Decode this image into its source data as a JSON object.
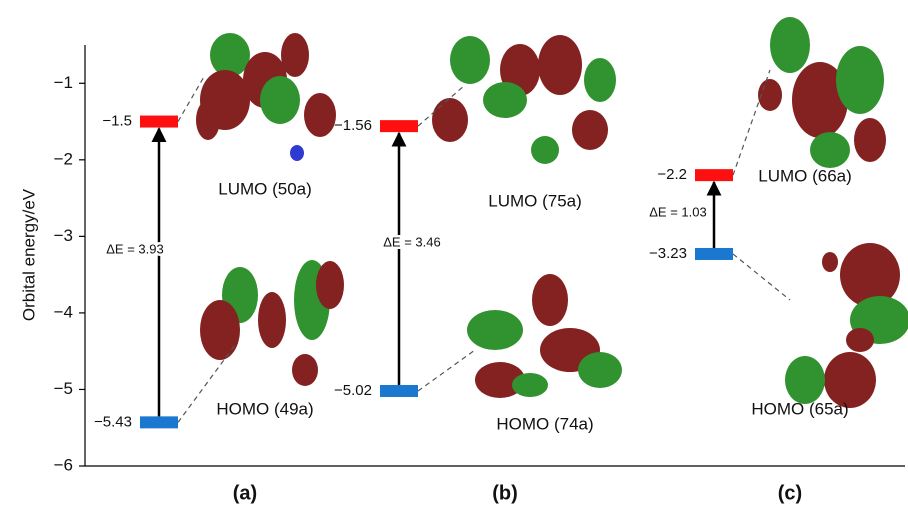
{
  "chart_data": {
    "type": "energy-level",
    "ylabel": "Orbital energy/eV",
    "ylim": [
      -6,
      -0.5
    ],
    "yticks": [
      {
        "value": -1,
        "label": "−1"
      },
      {
        "value": -2,
        "label": "−2"
      },
      {
        "value": -3,
        "label": "−3"
      },
      {
        "value": -4,
        "label": "−4"
      },
      {
        "value": -5,
        "label": "−5"
      },
      {
        "value": -6,
        "label": "−6"
      }
    ],
    "lumo_color": "#ff1010",
    "homo_color": "#1a78d0",
    "panels": [
      {
        "label": "(a)",
        "lumo": {
          "name": "LUMO (50a)",
          "value": -1.5,
          "value_label": "−1.5"
        },
        "homo": {
          "name": "HOMO (49a)",
          "value": -5.43,
          "value_label": "−5.43"
        },
        "gap": {
          "value": 3.93,
          "label": "ΔE = 3.93"
        }
      },
      {
        "label": "(b)",
        "lumo": {
          "name": "LUMO (75a)",
          "value": -1.56,
          "value_label": "−1.56"
        },
        "homo": {
          "name": "HOMO (74a)",
          "value": -5.02,
          "value_label": "−5.02"
        },
        "gap": {
          "value": 3.46,
          "label": "ΔE = 3.46"
        }
      },
      {
        "label": "(c)",
        "lumo": {
          "name": "LUMO (66a)",
          "value": -2.2,
          "value_label": "−2.2"
        },
        "homo": {
          "name": "HOMO (65a)",
          "value": -3.23,
          "value_label": "−3.23"
        },
        "gap": {
          "value": 1.03,
          "label": "ΔE = 1.03"
        }
      }
    ]
  }
}
